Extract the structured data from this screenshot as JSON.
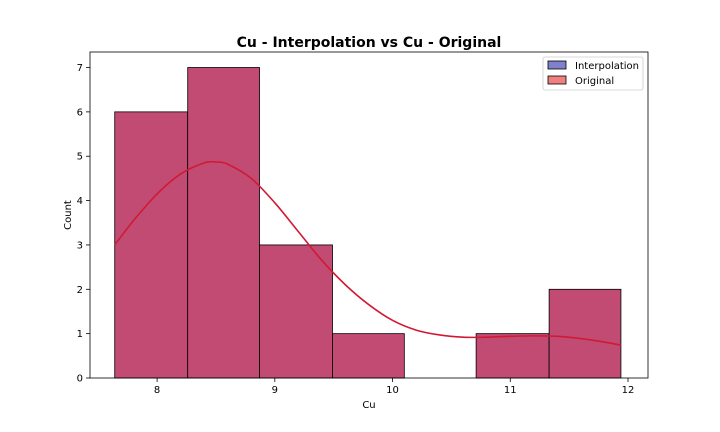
{
  "chart_data": {
    "type": "bar",
    "title": "Cu - Interpolation vs Cu - Original",
    "xlabel": "Cu",
    "ylabel": "Count",
    "xlim": [
      7.43,
      12.17
    ],
    "ylim": [
      0,
      7.35
    ],
    "xticks": [
      8,
      9,
      10,
      11,
      12
    ],
    "yticks": [
      0,
      1,
      2,
      3,
      4,
      5,
      6,
      7
    ],
    "grid": false,
    "legend_position": "top-right",
    "bins": [
      {
        "x0": 7.64,
        "x1": 8.26,
        "count": 6
      },
      {
        "x0": 8.26,
        "x1": 8.87,
        "count": 7
      },
      {
        "x0": 8.87,
        "x1": 9.49,
        "count": 3
      },
      {
        "x0": 9.49,
        "x1": 10.1,
        "count": 1
      },
      {
        "x0": 10.1,
        "x1": 10.71,
        "count": 0
      },
      {
        "x0": 10.71,
        "x1": 11.33,
        "count": 1
      },
      {
        "x0": 11.33,
        "x1": 11.94,
        "count": 2
      }
    ],
    "series": [
      {
        "name": "Interpolation",
        "color": "#8080cc"
      },
      {
        "name": "Original",
        "color": "#f08080"
      }
    ],
    "overlap_color": "#c24b73",
    "kde_color": "#d01a34",
    "kde": {
      "x": [
        7.64,
        7.8,
        8.0,
        8.2,
        8.4,
        8.5,
        8.6,
        8.8,
        9.0,
        9.2,
        9.4,
        9.6,
        9.8,
        10.0,
        10.2,
        10.4,
        10.6,
        10.8,
        11.0,
        11.2,
        11.4,
        11.6,
        11.8,
        11.94
      ],
      "y": [
        3.0,
        3.55,
        4.15,
        4.6,
        4.85,
        4.87,
        4.82,
        4.5,
        3.95,
        3.3,
        2.65,
        2.1,
        1.65,
        1.3,
        1.08,
        0.97,
        0.92,
        0.92,
        0.94,
        0.95,
        0.94,
        0.89,
        0.81,
        0.74
      ]
    }
  }
}
